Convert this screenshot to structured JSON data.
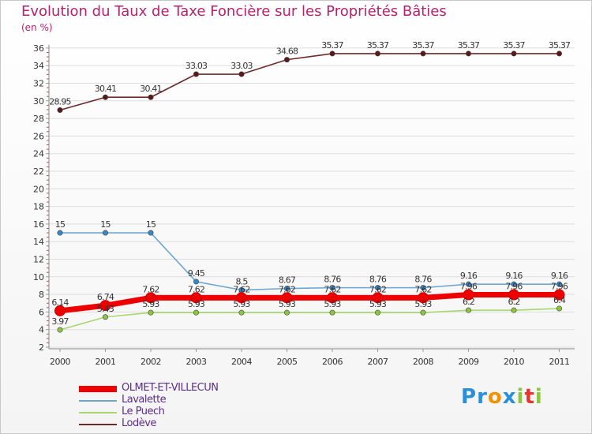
{
  "title": "Evolution du Taux de Taxe Foncière sur les Propriétés Bâties",
  "subtitle": "(en %)",
  "logo": {
    "text": "Proxiti",
    "letters": [
      "P",
      "r",
      "o",
      "x",
      "i",
      "t",
      "i"
    ],
    "colors": [
      "#2a8fd6",
      "#2a8fd6",
      "#f29200",
      "#2a8fd6",
      "#8cc63f",
      "#e8352e",
      "#8cc63f"
    ]
  },
  "chart_data": {
    "type": "line",
    "title": "Evolution du Taux de Taxe Foncière sur les Propriétés Bâties",
    "ylabel": "(en %)",
    "xlabel": "",
    "ylim": [
      2,
      36
    ],
    "yticks": [
      2,
      4,
      6,
      8,
      10,
      12,
      14,
      16,
      18,
      20,
      22,
      24,
      26,
      28,
      30,
      32,
      34,
      36
    ],
    "categories": [
      "2000",
      "2001",
      "2002",
      "2003",
      "2004",
      "2005",
      "2006",
      "2007",
      "2008",
      "2009",
      "2010",
      "2011"
    ],
    "series": [
      {
        "name": "Lodève",
        "color": "#6e2a2a",
        "marker": "#5a1818",
        "values": [
          28.95,
          30.41,
          30.41,
          33.03,
          33.03,
          34.68,
          35.37,
          35.37,
          35.37,
          35.37,
          35.37,
          35.37
        ],
        "labels": [
          "28.95",
          "30.41",
          "30.41",
          "33.03",
          "33.03",
          "34.68",
          "35.37",
          "35.37",
          "35.37",
          "35.37",
          "35.37",
          "35.37"
        ]
      },
      {
        "name": "Lavalette",
        "color": "#6fa6cf",
        "marker": "#3a87c8",
        "values": [
          15,
          15,
          15,
          9.45,
          8.5,
          8.67,
          8.76,
          8.76,
          8.76,
          9.16,
          9.16,
          9.16
        ],
        "labels": [
          "15",
          "15",
          "15",
          "9.45",
          "8.5",
          "8.67",
          "8.76",
          "8.76",
          "8.76",
          "9.16",
          "9.16",
          "9.16"
        ]
      },
      {
        "name": "OLMET-ET-VILLECUN",
        "color": "#ee0000",
        "marker": "#ee0000",
        "values": [
          6.14,
          6.74,
          7.62,
          7.62,
          7.62,
          7.62,
          7.62,
          7.62,
          7.62,
          7.96,
          7.96,
          7.96
        ],
        "labels": [
          "6.14",
          "6.74",
          "7.62",
          "7.62",
          "7.62",
          "7.62",
          "7.62",
          "7.62",
          "7.62",
          "7.96",
          "7.96",
          "7.96"
        ]
      },
      {
        "name": "Le Puech",
        "color": "#a6d86e",
        "marker": "#8cc63f",
        "values": [
          3.97,
          5.43,
          5.93,
          5.93,
          5.93,
          5.93,
          5.93,
          5.93,
          5.93,
          6.2,
          6.2,
          6.4
        ],
        "labels": [
          "3.97",
          "5.43",
          "5.93",
          "5.93",
          "5.93",
          "5.93",
          "5.93",
          "5.93",
          "5.93",
          "6.2",
          "6.2",
          "6.4"
        ]
      }
    ],
    "legend": {
      "placement": "bottom-left",
      "order": [
        "OLMET-ET-VILLECUN",
        "Lavalette",
        "Le Puech",
        "Lodève"
      ]
    }
  }
}
